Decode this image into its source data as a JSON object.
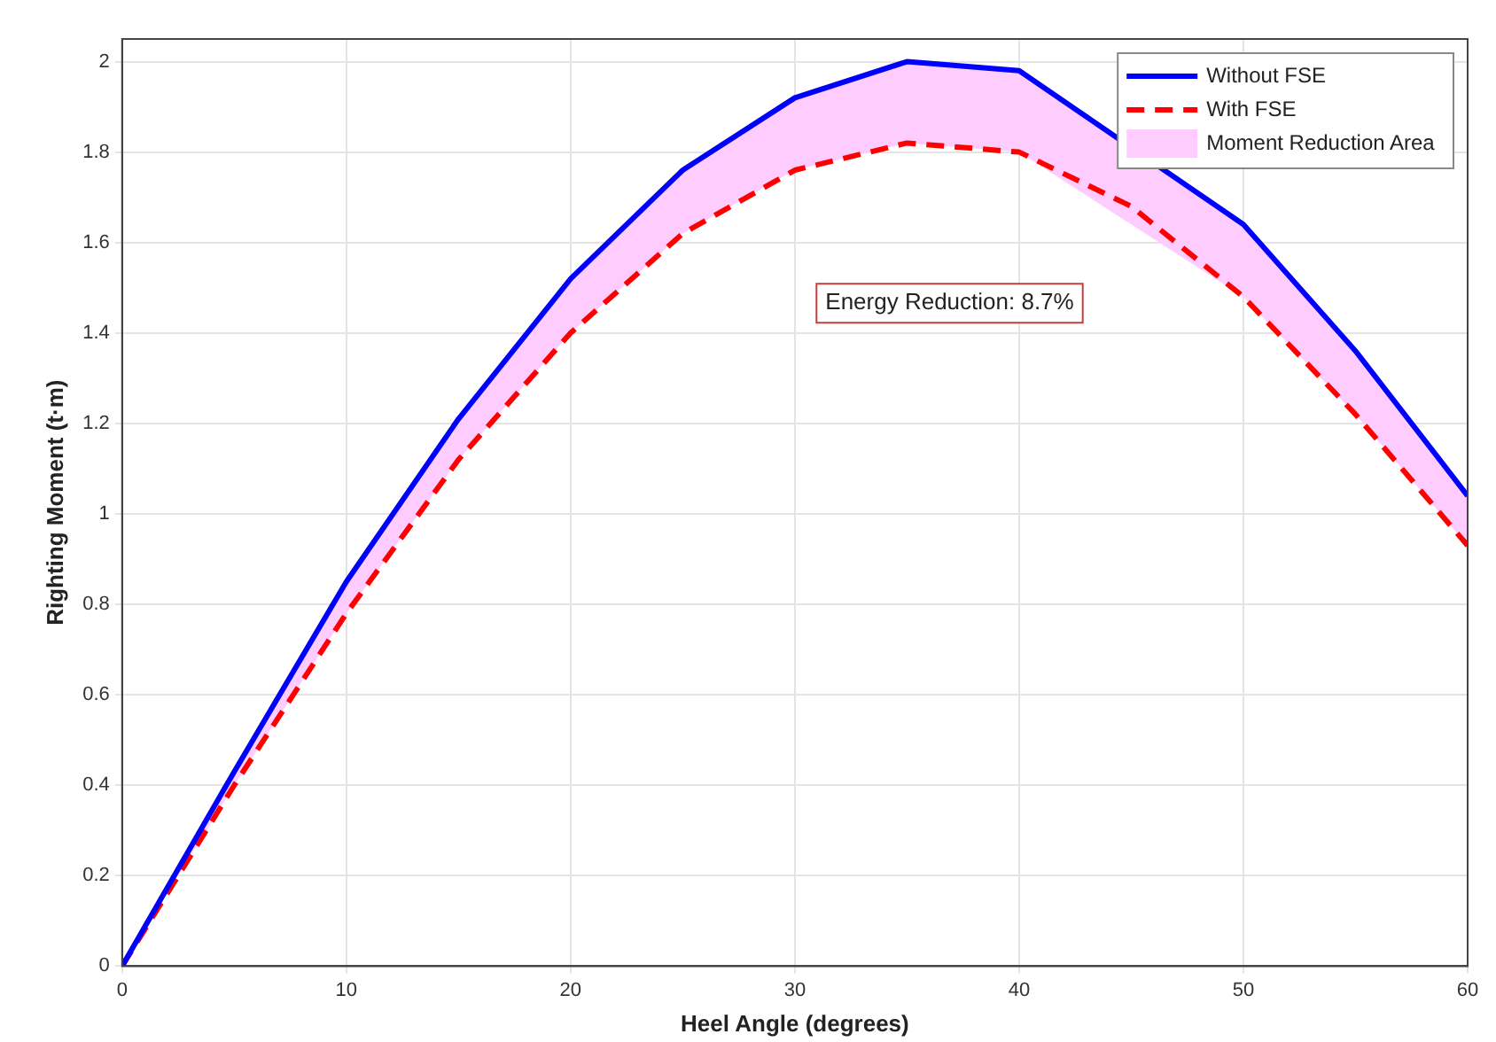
{
  "chart_data": {
    "type": "line",
    "xlabel": "Heel Angle (degrees)",
    "ylabel": "Righting Moment (t·m)",
    "x": [
      0,
      5,
      10,
      15,
      20,
      25,
      30,
      35,
      40,
      45,
      50,
      55,
      60
    ],
    "series": [
      {
        "name": "Without FSE",
        "color": "#0000ff",
        "line_style": "solid",
        "values": [
          0,
          0.43,
          0.85,
          1.21,
          1.52,
          1.76,
          1.92,
          2.0,
          1.98,
          null,
          1.64,
          1.36,
          1.04
        ]
      },
      {
        "name": "With FSE",
        "color": "#ff0000",
        "line_style": "dashed",
        "values": [
          0,
          0.4,
          0.78,
          1.12,
          1.4,
          1.62,
          1.76,
          1.82,
          1.8,
          1.68,
          1.48,
          1.22,
          0.93
        ]
      },
      {
        "name": "Moment Reduction Area",
        "type": "area",
        "color": "#ffccff",
        "values": [
          null,
          null,
          null,
          null,
          null,
          null,
          null,
          null,
          null,
          null,
          null,
          null,
          null
        ],
        "upper": [
          0,
          0.43,
          0.85,
          1.21,
          1.52,
          1.76,
          1.92,
          2.0,
          1.98,
          null,
          1.64,
          1.36,
          1.04
        ],
        "lower": [
          0,
          0.4,
          0.78,
          1.12,
          1.4,
          1.62,
          1.76,
          1.82,
          1.8,
          null,
          1.48,
          1.22,
          0.93
        ]
      }
    ],
    "annotations": [
      "Energy Reduction: 8.7%"
    ],
    "xlim": [
      0,
      60
    ],
    "xticks": [
      0,
      10,
      20,
      30,
      40,
      50,
      60
    ],
    "ylim": [
      0,
      2.05
    ],
    "yticks": [
      0,
      0.2,
      0.4,
      0.6,
      0.8,
      1,
      1.2,
      1.4,
      1.6,
      1.8,
      2
    ],
    "grid": true,
    "legend": "top right",
    "marker": "none"
  }
}
